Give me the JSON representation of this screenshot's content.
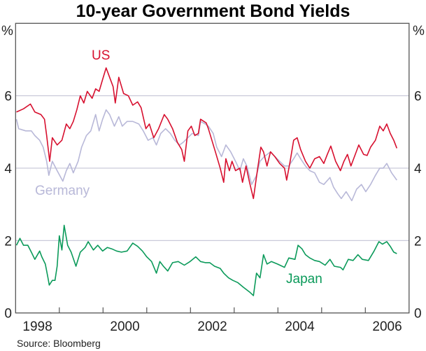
{
  "chart_data": {
    "type": "line",
    "title": "10-year Government Bond Yields",
    "ylabel_left": "%",
    "ylabel_right": "%",
    "source": "Source: Bloomberg",
    "xlim": [
      1998,
      2007
    ],
    "ylim": [
      0,
      8
    ],
    "yticks": [
      "0",
      "2",
      "4",
      "6"
    ],
    "yticks_values": [
      0,
      2,
      4,
      6
    ],
    "xtick_labels": [
      "1998",
      "2000",
      "2002",
      "2004",
      "2006"
    ],
    "xtick_label_years": [
      1998,
      2000,
      2002,
      2004,
      2006
    ],
    "grid": true,
    "series": [
      {
        "name": "US",
        "color": "#d7102f",
        "points": [
          [
            1998.02,
            5.55
          ],
          [
            1998.18,
            5.64
          ],
          [
            1998.34,
            5.77
          ],
          [
            1998.44,
            5.55
          ],
          [
            1998.58,
            5.48
          ],
          [
            1998.66,
            5.35
          ],
          [
            1998.71,
            4.9
          ],
          [
            1998.78,
            4.19
          ],
          [
            1998.84,
            4.84
          ],
          [
            1998.95,
            4.64
          ],
          [
            1999.06,
            4.77
          ],
          [
            1999.16,
            5.22
          ],
          [
            1999.24,
            5.09
          ],
          [
            1999.32,
            5.29
          ],
          [
            1999.4,
            5.61
          ],
          [
            1999.48,
            6.0
          ],
          [
            1999.56,
            5.8
          ],
          [
            1999.64,
            6.12
          ],
          [
            1999.75,
            5.93
          ],
          [
            1999.83,
            6.19
          ],
          [
            1999.91,
            6.12
          ],
          [
            1999.99,
            6.45
          ],
          [
            2000.07,
            6.77
          ],
          [
            2000.15,
            6.51
          ],
          [
            2000.23,
            6.25
          ],
          [
            2000.28,
            5.8
          ],
          [
            2000.36,
            6.51
          ],
          [
            2000.47,
            6.06
          ],
          [
            2000.58,
            6.0
          ],
          [
            2000.68,
            5.74
          ],
          [
            2000.79,
            5.83
          ],
          [
            2000.87,
            5.67
          ],
          [
            2000.98,
            5.09
          ],
          [
            2001.06,
            5.22
          ],
          [
            2001.16,
            4.84
          ],
          [
            2001.27,
            5.09
          ],
          [
            2001.4,
            5.48
          ],
          [
            2001.48,
            5.35
          ],
          [
            2001.59,
            5.09
          ],
          [
            2001.7,
            4.71
          ],
          [
            2001.8,
            4.51
          ],
          [
            2001.86,
            4.19
          ],
          [
            2001.94,
            5.03
          ],
          [
            2002.02,
            5.16
          ],
          [
            2002.1,
            4.9
          ],
          [
            2002.18,
            4.96
          ],
          [
            2002.23,
            5.35
          ],
          [
            2002.36,
            5.25
          ],
          [
            2002.41,
            5.09
          ],
          [
            2002.49,
            4.77
          ],
          [
            2002.57,
            4.45
          ],
          [
            2002.68,
            4.0
          ],
          [
            2002.76,
            3.61
          ],
          [
            2002.81,
            4.26
          ],
          [
            2002.89,
            3.93
          ],
          [
            2002.95,
            4.19
          ],
          [
            2003.03,
            3.93
          ],
          [
            2003.13,
            4.0
          ],
          [
            2003.19,
            3.61
          ],
          [
            2003.27,
            4.06
          ],
          [
            2003.35,
            3.61
          ],
          [
            2003.44,
            3.16
          ],
          [
            2003.53,
            3.93
          ],
          [
            2003.61,
            4.58
          ],
          [
            2003.67,
            4.45
          ],
          [
            2003.75,
            4.06
          ],
          [
            2003.83,
            4.45
          ],
          [
            2003.93,
            4.32
          ],
          [
            2004.04,
            4.13
          ],
          [
            2004.15,
            4.0
          ],
          [
            2004.2,
            3.67
          ],
          [
            2004.28,
            4.19
          ],
          [
            2004.36,
            4.77
          ],
          [
            2004.44,
            4.84
          ],
          [
            2004.52,
            4.51
          ],
          [
            2004.63,
            4.19
          ],
          [
            2004.73,
            4.0
          ],
          [
            2004.84,
            4.26
          ],
          [
            2004.95,
            4.32
          ],
          [
            2005.05,
            4.13
          ],
          [
            2005.13,
            4.38
          ],
          [
            2005.21,
            4.61
          ],
          [
            2005.32,
            4.19
          ],
          [
            2005.43,
            3.93
          ],
          [
            2005.51,
            4.19
          ],
          [
            2005.59,
            4.38
          ],
          [
            2005.67,
            4.06
          ],
          [
            2005.77,
            4.38
          ],
          [
            2005.85,
            4.64
          ],
          [
            2005.96,
            4.38
          ],
          [
            2006.04,
            4.35
          ],
          [
            2006.12,
            4.58
          ],
          [
            2006.23,
            4.77
          ],
          [
            2006.33,
            5.16
          ],
          [
            2006.41,
            5.03
          ],
          [
            2006.49,
            5.22
          ],
          [
            2006.57,
            4.96
          ],
          [
            2006.65,
            4.77
          ],
          [
            2006.72,
            4.55
          ]
        ]
      },
      {
        "name": "Germany",
        "color": "#b8b8d8",
        "points": [
          [
            1998.02,
            5.35
          ],
          [
            1998.07,
            5.09
          ],
          [
            1998.23,
            5.03
          ],
          [
            1998.36,
            5.03
          ],
          [
            1998.44,
            4.9
          ],
          [
            1998.55,
            4.77
          ],
          [
            1998.63,
            4.58
          ],
          [
            1998.71,
            4.19
          ],
          [
            1998.76,
            3.8
          ],
          [
            1998.84,
            4.19
          ],
          [
            1998.95,
            3.93
          ],
          [
            1999.08,
            3.64
          ],
          [
            1999.16,
            3.93
          ],
          [
            1999.24,
            4.13
          ],
          [
            1999.32,
            3.87
          ],
          [
            1999.43,
            4.19
          ],
          [
            1999.51,
            4.58
          ],
          [
            1999.62,
            4.9
          ],
          [
            1999.72,
            5.03
          ],
          [
            1999.83,
            5.48
          ],
          [
            1999.91,
            5.03
          ],
          [
            1999.99,
            5.35
          ],
          [
            2000.07,
            5.61
          ],
          [
            2000.15,
            5.48
          ],
          [
            2000.26,
            5.16
          ],
          [
            2000.36,
            5.42
          ],
          [
            2000.44,
            5.16
          ],
          [
            2000.55,
            5.29
          ],
          [
            2000.68,
            5.29
          ],
          [
            2000.82,
            5.22
          ],
          [
            2000.92,
            5.03
          ],
          [
            2001.03,
            4.77
          ],
          [
            2001.14,
            4.84
          ],
          [
            2001.22,
            4.64
          ],
          [
            2001.32,
            4.96
          ],
          [
            2001.43,
            5.09
          ],
          [
            2001.54,
            4.96
          ],
          [
            2001.64,
            4.77
          ],
          [
            2001.75,
            4.64
          ],
          [
            2001.83,
            4.71
          ],
          [
            2001.94,
            4.84
          ],
          [
            2002.04,
            4.96
          ],
          [
            2002.18,
            4.9
          ],
          [
            2002.23,
            5.29
          ],
          [
            2002.34,
            5.22
          ],
          [
            2002.41,
            5.16
          ],
          [
            2002.52,
            4.96
          ],
          [
            2002.6,
            4.58
          ],
          [
            2002.71,
            4.32
          ],
          [
            2002.81,
            4.64
          ],
          [
            2002.92,
            4.45
          ],
          [
            2003.03,
            4.19
          ],
          [
            2003.13,
            3.93
          ],
          [
            2003.21,
            4.26
          ],
          [
            2003.29,
            4.06
          ],
          [
            2003.4,
            3.55
          ],
          [
            2003.51,
            3.8
          ],
          [
            2003.59,
            4.19
          ],
          [
            2003.69,
            4.32
          ],
          [
            2003.83,
            4.45
          ],
          [
            2003.93,
            4.32
          ],
          [
            2004.04,
            4.19
          ],
          [
            2004.15,
            4.06
          ],
          [
            2004.25,
            4.06
          ],
          [
            2004.36,
            4.26
          ],
          [
            2004.44,
            4.42
          ],
          [
            2004.52,
            4.26
          ],
          [
            2004.63,
            4.06
          ],
          [
            2004.73,
            3.93
          ],
          [
            2004.84,
            3.87
          ],
          [
            2004.95,
            3.61
          ],
          [
            2005.05,
            3.55
          ],
          [
            2005.19,
            3.74
          ],
          [
            2005.27,
            3.48
          ],
          [
            2005.37,
            3.29
          ],
          [
            2005.45,
            3.16
          ],
          [
            2005.56,
            3.35
          ],
          [
            2005.69,
            3.1
          ],
          [
            2005.8,
            3.42
          ],
          [
            2005.91,
            3.55
          ],
          [
            2006.01,
            3.35
          ],
          [
            2006.12,
            3.55
          ],
          [
            2006.23,
            3.8
          ],
          [
            2006.33,
            4.0
          ],
          [
            2006.41,
            4.0
          ],
          [
            2006.49,
            4.13
          ],
          [
            2006.6,
            3.87
          ],
          [
            2006.72,
            3.67
          ]
        ]
      },
      {
        "name": "Japan",
        "color": "#0b9a5a",
        "points": [
          [
            1998.02,
            1.87
          ],
          [
            1998.1,
            2.06
          ],
          [
            1998.18,
            1.87
          ],
          [
            1998.28,
            1.87
          ],
          [
            1998.36,
            1.68
          ],
          [
            1998.44,
            1.48
          ],
          [
            1998.55,
            1.71
          ],
          [
            1998.6,
            1.55
          ],
          [
            1998.68,
            1.35
          ],
          [
            1998.74,
            0.97
          ],
          [
            1998.77,
            0.77
          ],
          [
            1998.84,
            0.9
          ],
          [
            1998.9,
            0.9
          ],
          [
            1998.95,
            1.29
          ],
          [
            1999.0,
            2.13
          ],
          [
            1999.06,
            1.74
          ],
          [
            1999.11,
            2.42
          ],
          [
            1999.19,
            1.87
          ],
          [
            1999.27,
            1.68
          ],
          [
            1999.38,
            1.29
          ],
          [
            1999.48,
            1.68
          ],
          [
            1999.59,
            1.81
          ],
          [
            1999.66,
            1.97
          ],
          [
            1999.78,
            1.74
          ],
          [
            1999.88,
            1.87
          ],
          [
            1999.99,
            1.71
          ],
          [
            2000.1,
            1.81
          ],
          [
            2000.2,
            1.77
          ],
          [
            2000.31,
            1.71
          ],
          [
            2000.42,
            1.68
          ],
          [
            2000.55,
            1.71
          ],
          [
            2000.68,
            1.93
          ],
          [
            2000.79,
            1.84
          ],
          [
            2000.9,
            1.71
          ],
          [
            2001.0,
            1.55
          ],
          [
            2001.11,
            1.42
          ],
          [
            2001.22,
            1.1
          ],
          [
            2001.3,
            1.42
          ],
          [
            2001.38,
            1.29
          ],
          [
            2001.48,
            1.16
          ],
          [
            2001.59,
            1.39
          ],
          [
            2001.72,
            1.42
          ],
          [
            2001.86,
            1.32
          ],
          [
            2001.99,
            1.42
          ],
          [
            2002.12,
            1.55
          ],
          [
            2002.23,
            1.42
          ],
          [
            2002.34,
            1.39
          ],
          [
            2002.44,
            1.39
          ],
          [
            2002.55,
            1.29
          ],
          [
            2002.68,
            1.23
          ],
          [
            2002.76,
            1.1
          ],
          [
            2002.87,
            0.97
          ],
          [
            2002.97,
            0.9
          ],
          [
            2003.08,
            0.84
          ],
          [
            2003.21,
            0.71
          ],
          [
            2003.35,
            0.58
          ],
          [
            2003.44,
            0.48
          ],
          [
            2003.51,
            1.1
          ],
          [
            2003.59,
            0.97
          ],
          [
            2003.67,
            1.61
          ],
          [
            2003.75,
            1.35
          ],
          [
            2003.85,
            1.42
          ],
          [
            2003.99,
            1.35
          ],
          [
            2004.15,
            1.26
          ],
          [
            2004.25,
            1.52
          ],
          [
            2004.39,
            1.48
          ],
          [
            2004.46,
            1.87
          ],
          [
            2004.55,
            1.77
          ],
          [
            2004.63,
            1.61
          ],
          [
            2004.73,
            1.52
          ],
          [
            2004.84,
            1.45
          ],
          [
            2004.95,
            1.42
          ],
          [
            2005.08,
            1.32
          ],
          [
            2005.19,
            1.48
          ],
          [
            2005.29,
            1.29
          ],
          [
            2005.43,
            1.26
          ],
          [
            2005.49,
            1.19
          ],
          [
            2005.61,
            1.48
          ],
          [
            2005.72,
            1.45
          ],
          [
            2005.83,
            1.61
          ],
          [
            2005.93,
            1.48
          ],
          [
            2006.07,
            1.45
          ],
          [
            2006.2,
            1.71
          ],
          [
            2006.31,
            1.97
          ],
          [
            2006.39,
            1.9
          ],
          [
            2006.49,
            1.97
          ],
          [
            2006.57,
            1.84
          ],
          [
            2006.65,
            1.68
          ],
          [
            2006.72,
            1.64
          ]
        ]
      }
    ],
    "series_labels": {
      "us": "US",
      "germany": "Germany",
      "japan": "Japan"
    }
  }
}
